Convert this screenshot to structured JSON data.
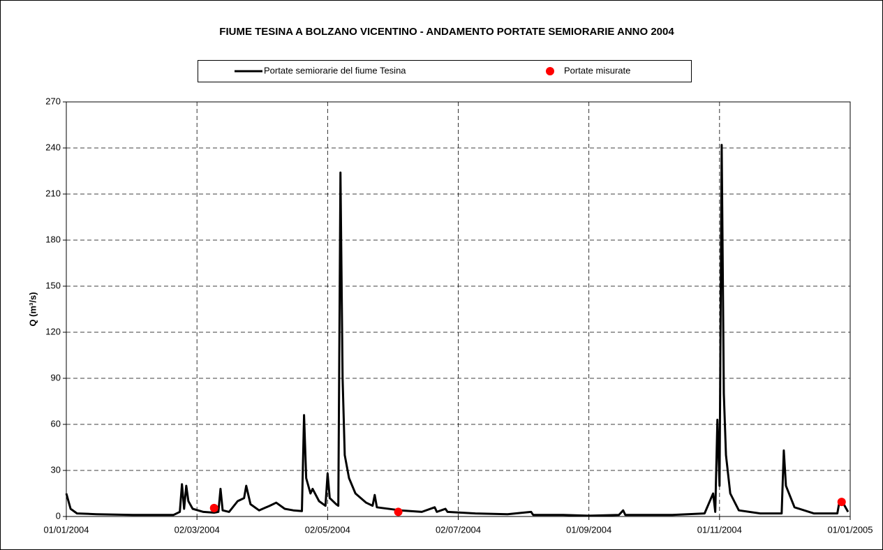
{
  "chart_data": {
    "type": "line",
    "title": "FIUME TESINA A BOLZANO VICENTINO - ANDAMENTO PORTATE SEMIORARIE ANNO 2004",
    "y_label": "Q (m³/s)",
    "series": [
      {
        "name": "Portate semiorarie del fiume Tesina",
        "color": "#000000",
        "type": "line",
        "x": [
          "01/01/2004",
          "03/01/2004",
          "06/01/2004",
          "15/01/2004",
          "01/02/2004",
          "20/02/2004",
          "23/02/2004",
          "24/02/2004",
          "25/02/2004",
          "26/02/2004",
          "27/02/2004",
          "29/02/2004",
          "05/03/2004",
          "10/03/2004",
          "12/03/2004",
          "13/03/2004",
          "14/03/2004",
          "17/03/2004",
          "21/03/2004",
          "24/03/2004",
          "25/03/2004",
          "27/03/2004",
          "31/03/2004",
          "05/04/2004",
          "08/04/2004",
          "12/04/2004",
          "16/04/2004",
          "20/04/2004",
          "21/04/2004",
          "22/04/2004",
          "24/04/2004",
          "25/04/2004",
          "28/04/2004",
          "01/05/2004",
          "02/05/2004",
          "03/05/2004",
          "06/05/2004",
          "07/05/2004",
          "08/05/2004",
          "09/05/2004",
          "10/05/2004",
          "12/05/2004",
          "15/05/2004",
          "20/05/2004",
          "23/05/2004",
          "24/05/2004",
          "25/05/2004",
          "05/06/2004",
          "15/06/2004",
          "21/06/2004",
          "22/06/2004",
          "26/06/2004",
          "27/06/2004",
          "10/07/2004",
          "25/07/2004",
          "05/08/2004",
          "06/08/2004",
          "20/08/2004",
          "01/09/2004",
          "15/09/2004",
          "17/09/2004",
          "18/09/2004",
          "10/10/2004",
          "25/10/2004",
          "29/10/2004",
          "30/10/2004",
          "31/10/2004",
          "01/11/2004",
          "02/11/2004",
          "03/11/2004",
          "04/11/2004",
          "06/11/2004",
          "10/11/2004",
          "20/11/2004",
          "30/11/2004",
          "01/12/2004",
          "02/12/2004",
          "06/12/2004",
          "15/12/2004",
          "26/12/2004",
          "27/12/2004",
          "29/12/2004",
          "31/12/2004"
        ],
        "values": [
          15,
          5,
          2,
          1.5,
          1,
          1,
          3,
          21,
          5,
          20,
          10,
          5,
          3,
          2.5,
          3,
          18,
          4,
          3,
          10,
          12,
          20,
          8,
          4,
          7,
          9,
          5,
          4,
          3.5,
          66,
          25,
          15,
          18,
          10,
          7,
          28,
          12,
          8,
          7,
          224,
          90,
          40,
          25,
          15,
          9,
          7,
          14,
          6,
          4,
          3,
          6,
          3,
          5,
          3,
          2,
          1.5,
          3,
          1,
          1,
          0.5,
          1,
          4,
          1,
          1,
          2,
          15,
          3,
          63,
          20,
          242,
          80,
          40,
          15,
          4,
          2,
          2,
          43,
          20,
          6,
          2,
          2,
          10,
          8,
          3
        ]
      },
      {
        "name": "Portate misurate",
        "color": "#ff0000",
        "type": "scatter",
        "x": [
          "10/03/2004",
          "04/06/2004",
          "28/12/2004"
        ],
        "values": [
          5.5,
          3,
          9.5
        ]
      }
    ],
    "xlim": [
      "01/01/2004",
      "01/01/2005"
    ],
    "xticks": [
      "01/01/2004",
      "02/03/2004",
      "02/05/2004",
      "02/07/2004",
      "01/09/2004",
      "01/11/2004",
      "01/01/2005"
    ],
    "ylim": [
      0,
      270
    ],
    "yticks": [
      0,
      30,
      60,
      90,
      120,
      150,
      180,
      210,
      240,
      270
    ],
    "grid": true
  }
}
